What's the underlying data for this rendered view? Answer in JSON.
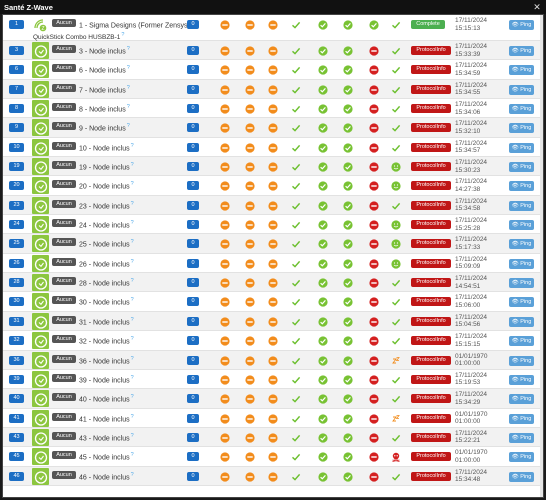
{
  "window": {
    "title": "Santé Z-Wave",
    "close_icon": "close-icon"
  },
  "controller": {
    "id": "1",
    "group": "Aucun",
    "name": "1 - Sigma Designs (Former Zensys)",
    "subtitle": "QuickStick Combo HUSBZB-1",
    "count": "0",
    "status": "Complete",
    "date": "17/11/2024",
    "time": "15:15:13",
    "ping": "Ping",
    "icons": [
      "minus-orange",
      "minus-orange",
      "minus-orange",
      "check-plain",
      "check-green",
      "check-green",
      "check-green",
      "check-plain"
    ]
  },
  "rows": [
    {
      "id": "3",
      "group": "Aucun",
      "name": "3 - Node inclus",
      "count": "0",
      "status": "ProtocolInfo",
      "date": "17/11/2024",
      "time": "15:33:39",
      "ping": "Ping",
      "icons": [
        "minus-orange",
        "minus-orange",
        "minus-orange",
        "check-plain",
        "check-green",
        "check-green",
        "stop-red",
        "check-plain"
      ]
    },
    {
      "id": "6",
      "group": "Aucun",
      "name": "6 - Node inclus",
      "count": "0",
      "status": "ProtocolInfo",
      "date": "17/11/2024",
      "time": "15:34:59",
      "ping": "Ping",
      "icons": [
        "minus-orange",
        "minus-orange",
        "minus-orange",
        "check-plain",
        "check-green",
        "check-green",
        "stop-red",
        "check-plain"
      ]
    },
    {
      "id": "7",
      "group": "Aucun",
      "name": "7 - Node inclus",
      "count": "0",
      "status": "ProtocolInfo",
      "date": "17/11/2024",
      "time": "15:34:55",
      "ping": "Ping",
      "icons": [
        "minus-orange",
        "minus-orange",
        "minus-orange",
        "check-plain",
        "check-green",
        "check-green",
        "stop-red",
        "check-plain"
      ]
    },
    {
      "id": "8",
      "group": "Aucun",
      "name": "8 - Node inclus",
      "count": "0",
      "status": "ProtocolInfo",
      "date": "17/11/2024",
      "time": "15:34:06",
      "ping": "Ping",
      "icons": [
        "minus-orange",
        "minus-orange",
        "minus-orange",
        "check-plain",
        "check-green",
        "check-green",
        "stop-red",
        "check-plain"
      ]
    },
    {
      "id": "9",
      "group": "Aucun",
      "name": "9 - Node inclus",
      "count": "0",
      "status": "ProtocolInfo",
      "date": "17/11/2024",
      "time": "15:32:10",
      "ping": "Ping",
      "icons": [
        "minus-orange",
        "minus-orange",
        "minus-orange",
        "check-plain",
        "check-green",
        "check-green",
        "stop-red",
        "check-plain"
      ]
    },
    {
      "id": "10",
      "group": "Aucun",
      "name": "10 - Node inclus",
      "count": "0",
      "status": "ProtocolInfo",
      "date": "17/11/2024",
      "time": "15:34:57",
      "ping": "Ping",
      "icons": [
        "minus-orange",
        "minus-orange",
        "minus-orange",
        "check-plain",
        "check-green",
        "check-green",
        "stop-red",
        "check-plain"
      ]
    },
    {
      "id": "19",
      "group": "Aucun",
      "name": "19 - Node inclus",
      "count": "0",
      "status": "ProtocolInfo",
      "date": "17/11/2024",
      "time": "15:30:23",
      "ping": "Ping",
      "icons": [
        "minus-orange",
        "minus-orange",
        "minus-orange",
        "check-plain",
        "check-green",
        "check-green",
        "stop-red",
        "smile-green"
      ]
    },
    {
      "id": "20",
      "group": "Aucun",
      "name": "20 - Node inclus",
      "count": "0",
      "status": "ProtocolInfo",
      "date": "17/11/2024",
      "time": "14:27:38",
      "ping": "Ping",
      "icons": [
        "minus-orange",
        "minus-orange",
        "minus-orange",
        "check-plain",
        "check-green",
        "check-green",
        "stop-red",
        "smile-green"
      ]
    },
    {
      "id": "23",
      "group": "Aucun",
      "name": "23 - Node inclus",
      "count": "0",
      "status": "ProtocolInfo",
      "date": "17/11/2024",
      "time": "15:34:58",
      "ping": "Ping",
      "icons": [
        "minus-orange",
        "minus-orange",
        "minus-orange",
        "check-plain",
        "check-green",
        "check-green",
        "stop-red",
        "check-plain"
      ]
    },
    {
      "id": "24",
      "group": "Aucun",
      "name": "24 - Node inclus",
      "count": "0",
      "status": "ProtocolInfo",
      "date": "17/11/2024",
      "time": "15:25:28",
      "ping": "Ping",
      "icons": [
        "minus-orange",
        "minus-orange",
        "minus-orange",
        "check-plain",
        "check-green",
        "check-green",
        "stop-red",
        "smile-green"
      ]
    },
    {
      "id": "25",
      "group": "Aucun",
      "name": "25 - Node inclus",
      "count": "0",
      "status": "ProtocolInfo",
      "date": "17/11/2024",
      "time": "15:17:33",
      "ping": "Ping",
      "icons": [
        "minus-orange",
        "minus-orange",
        "minus-orange",
        "check-plain",
        "check-green",
        "check-green",
        "stop-red",
        "smile-green"
      ]
    },
    {
      "id": "26",
      "group": "Aucun",
      "name": "26 - Node inclus",
      "count": "0",
      "status": "ProtocolInfo",
      "date": "17/11/2024",
      "time": "15:09:09",
      "ping": "Ping",
      "icons": [
        "minus-orange",
        "minus-orange",
        "minus-orange",
        "check-plain",
        "check-green",
        "check-green",
        "stop-red",
        "smile-green"
      ]
    },
    {
      "id": "28",
      "group": "Aucun",
      "name": "28 - Node inclus",
      "count": "0",
      "status": "ProtocolInfo",
      "date": "17/11/2024",
      "time": "14:54:51",
      "ping": "Ping",
      "icons": [
        "minus-orange",
        "minus-orange",
        "minus-orange",
        "check-plain",
        "check-green",
        "check-green",
        "stop-red",
        "check-plain"
      ]
    },
    {
      "id": "30",
      "group": "Aucun",
      "name": "30 - Node inclus",
      "count": "0",
      "status": "ProtocolInfo",
      "date": "17/11/2024",
      "time": "15:06:00",
      "ping": "Ping",
      "icons": [
        "minus-orange",
        "minus-orange",
        "minus-orange",
        "check-plain",
        "check-green",
        "check-green",
        "stop-red",
        "check-plain"
      ]
    },
    {
      "id": "31",
      "group": "Aucun",
      "name": "31 - Node inclus",
      "count": "0",
      "status": "ProtocolInfo",
      "date": "17/11/2024",
      "time": "15:04:56",
      "ping": "Ping",
      "icons": [
        "minus-orange",
        "minus-orange",
        "minus-orange",
        "check-plain",
        "check-green",
        "check-green",
        "stop-red",
        "check-plain"
      ]
    },
    {
      "id": "32",
      "group": "Aucun",
      "name": "32 - Node inclus",
      "count": "0",
      "status": "ProtocolInfo",
      "date": "17/11/2024",
      "time": "15:15:15",
      "ping": "Ping",
      "icons": [
        "minus-orange",
        "minus-orange",
        "minus-orange",
        "check-plain",
        "check-green",
        "check-green",
        "stop-red",
        "check-plain"
      ]
    },
    {
      "id": "36",
      "group": "Aucun",
      "name": "36 - Node inclus",
      "count": "0",
      "status": "ProtocolInfo",
      "date": "01/01/1970",
      "time": "01:00:00",
      "ping": "Ping",
      "icons": [
        "minus-orange",
        "minus-orange",
        "minus-orange",
        "check-plain",
        "check-green",
        "check-green",
        "stop-red",
        "sleep-orange"
      ]
    },
    {
      "id": "39",
      "group": "Aucun",
      "name": "39 - Node inclus",
      "count": "0",
      "status": "ProtocolInfo",
      "date": "17/11/2024",
      "time": "15:19:53",
      "ping": "Ping",
      "icons": [
        "minus-orange",
        "minus-orange",
        "minus-orange",
        "check-plain",
        "check-green",
        "check-green",
        "stop-red",
        "check-plain"
      ]
    },
    {
      "id": "40",
      "group": "Aucun",
      "name": "40 - Node inclus",
      "count": "0",
      "status": "ProtocolInfo",
      "date": "17/11/2024",
      "time": "15:34:29",
      "ping": "Ping",
      "icons": [
        "minus-orange",
        "minus-orange",
        "minus-orange",
        "check-plain",
        "check-green",
        "check-green",
        "stop-red",
        "check-plain"
      ]
    },
    {
      "id": "41",
      "group": "Aucun",
      "name": "41 - Node inclus",
      "count": "0",
      "status": "ProtocolInfo",
      "date": "01/01/1970",
      "time": "01:00:00",
      "ping": "Ping",
      "icons": [
        "minus-orange",
        "minus-orange",
        "minus-orange",
        "check-plain",
        "check-green",
        "check-green",
        "stop-red",
        "sleep-orange"
      ]
    },
    {
      "id": "43",
      "group": "Aucun",
      "name": "43 - Node inclus",
      "count": "0",
      "status": "ProtocolInfo",
      "date": "17/11/2024",
      "time": "15:22:21",
      "ping": "Ping",
      "icons": [
        "minus-orange",
        "minus-orange",
        "minus-orange",
        "check-plain",
        "check-green",
        "check-green",
        "stop-red",
        "check-plain"
      ]
    },
    {
      "id": "45",
      "group": "Aucun",
      "name": "45 - Node inclus",
      "count": "0",
      "status": "ProtocolInfo",
      "date": "01/01/1970",
      "time": "01:00:00",
      "ping": "Ping",
      "icons": [
        "minus-orange",
        "minus-orange",
        "minus-orange",
        "check-plain",
        "check-green",
        "check-green",
        "stop-red",
        "dead-red"
      ]
    },
    {
      "id": "46",
      "group": "Aucun",
      "name": "46 - Node inclus",
      "count": "0",
      "status": "ProtocolInfo",
      "date": "17/11/2024",
      "time": "15:34:48",
      "ping": "Ping",
      "icons": [
        "minus-orange",
        "minus-orange",
        "minus-orange",
        "check-plain",
        "check-green",
        "check-green",
        "stop-red",
        "check-plain"
      ]
    }
  ],
  "colors": {
    "accent": "#1c6ec4",
    "node_bg": "#8cc63f",
    "status_complete": "#4caf50",
    "status_error": "#c01616",
    "ping": "#5aa0d8"
  }
}
